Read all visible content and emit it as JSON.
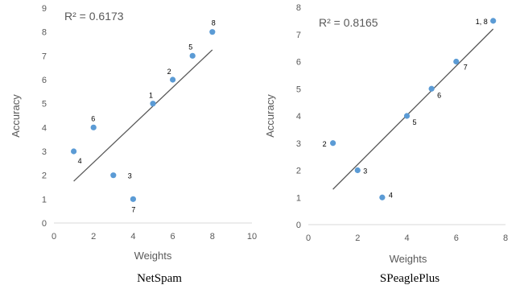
{
  "chart_data": [
    {
      "type": "scatter",
      "caption": "NetSpam",
      "xlabel": "Weights",
      "ylabel": "Accuracy",
      "xlim": [
        0,
        10
      ],
      "ylim": [
        0,
        9
      ],
      "xticks": [
        0,
        2,
        4,
        6,
        8,
        10
      ],
      "yticks": [
        0,
        1,
        2,
        3,
        4,
        5,
        6,
        7,
        8,
        9
      ],
      "grid": false,
      "annotation": "R² = 0.6173",
      "trendline": {
        "x": [
          1,
          8
        ],
        "y": [
          1.75,
          7.25
        ]
      },
      "points": [
        {
          "label": "1",
          "x": 5,
          "y": 5
        },
        {
          "label": "2",
          "x": 6,
          "y": 6
        },
        {
          "label": "3",
          "x": 3,
          "y": 2
        },
        {
          "label": "4",
          "x": 1,
          "y": 3
        },
        {
          "label": "5",
          "x": 7,
          "y": 7
        },
        {
          "label": "6",
          "x": 2,
          "y": 4
        },
        {
          "label": "7",
          "x": 4,
          "y": 1
        },
        {
          "label": "8",
          "x": 8,
          "y": 8
        }
      ],
      "colors": {
        "marker": "#5b9bd5",
        "trendline": "#595959",
        "axis": "#d9d9d9"
      }
    },
    {
      "type": "scatter",
      "caption": "SPeaglePlus",
      "xlabel": "Weights",
      "ylabel": "Accuracy",
      "xlim": [
        0,
        8
      ],
      "ylim": [
        0,
        8
      ],
      "xticks": [
        0,
        2,
        4,
        6,
        8
      ],
      "yticks": [
        0,
        1,
        2,
        3,
        4,
        5,
        6,
        7,
        8
      ],
      "grid": false,
      "annotation": "R² = 0.8165",
      "trendline": {
        "x": [
          1,
          7.5
        ],
        "y": [
          1.3,
          7.2
        ]
      },
      "points": [
        {
          "label": "1, 8",
          "x": 7.5,
          "y": 7.5
        },
        {
          "label": "7",
          "x": 6,
          "y": 6
        },
        {
          "label": "6",
          "x": 5,
          "y": 5
        },
        {
          "label": "5",
          "x": 4,
          "y": 4
        },
        {
          "label": "2",
          "x": 1,
          "y": 3
        },
        {
          "label": "3",
          "x": 2,
          "y": 2
        },
        {
          "label": "4",
          "x": 3,
          "y": 1
        }
      ],
      "colors": {
        "marker": "#5b9bd5",
        "trendline": "#595959",
        "axis": "#d9d9d9"
      }
    }
  ]
}
